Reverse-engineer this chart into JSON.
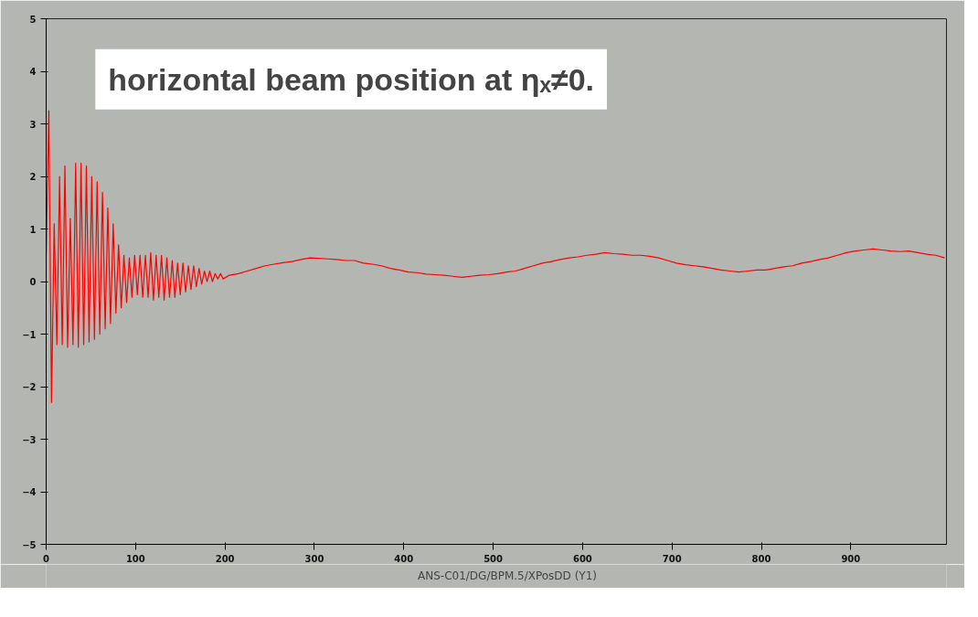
{
  "chart_data": {
    "type": "line",
    "title": "horizontal beam position at ηₓ≠0.",
    "xlim": [
      0,
      1007
    ],
    "ylim": [
      -5,
      5
    ],
    "xticks": [
      0,
      100,
      200,
      300,
      400,
      500,
      600,
      700,
      800,
      900
    ],
    "yticks": [
      -5,
      -4,
      -3,
      -2,
      -1,
      0,
      1,
      2,
      3,
      4,
      5
    ],
    "grid": false,
    "legend": "bottom",
    "marker": "none",
    "line_style": "solid",
    "series": [
      {
        "name": "ANS-C01/DG/BPM.5/XPosDD (Y1)",
        "color": "#ff0000",
        "x": [
          0,
          3,
          6,
          9,
          12,
          15,
          18,
          21,
          24,
          27,
          30,
          33,
          36,
          39,
          42,
          45,
          48,
          51,
          54,
          57,
          60,
          63,
          66,
          69,
          72,
          75,
          78,
          81,
          84,
          87,
          90,
          93,
          96,
          99,
          102,
          105,
          108,
          111,
          114,
          117,
          120,
          123,
          126,
          129,
          132,
          135,
          138,
          141,
          144,
          147,
          150,
          153,
          156,
          159,
          162,
          165,
          168,
          171,
          174,
          177,
          180,
          183,
          186,
          189,
          192,
          195,
          198,
          205,
          215,
          225,
          235,
          245,
          255,
          265,
          275,
          285,
          295,
          305,
          315,
          325,
          335,
          345,
          355,
          365,
          375,
          385,
          395,
          405,
          415,
          425,
          435,
          445,
          455,
          465,
          475,
          485,
          495,
          505,
          515,
          525,
          535,
          545,
          555,
          565,
          575,
          585,
          595,
          605,
          615,
          625,
          635,
          645,
          655,
          665,
          675,
          685,
          695,
          705,
          715,
          725,
          735,
          745,
          755,
          765,
          775,
          785,
          795,
          805,
          815,
          825,
          835,
          845,
          855,
          865,
          875,
          885,
          895,
          905,
          915,
          925,
          935,
          945,
          955,
          965,
          975,
          985,
          995,
          1005
        ],
        "values": [
          0.5,
          3.25,
          -2.3,
          1.1,
          -1.2,
          2.0,
          -1.2,
          2.2,
          -1.25,
          1.2,
          -1.2,
          2.25,
          -1.25,
          2.25,
          -1.2,
          2.2,
          -1.15,
          2.0,
          -1.1,
          1.9,
          -1.0,
          1.7,
          -0.9,
          1.4,
          -0.8,
          1.1,
          -0.6,
          0.7,
          -0.5,
          0.5,
          -0.4,
          0.45,
          -0.3,
          0.5,
          -0.25,
          0.5,
          -0.3,
          0.5,
          -0.3,
          0.55,
          -0.35,
          0.5,
          -0.3,
          0.5,
          -0.35,
          0.45,
          -0.3,
          0.4,
          -0.3,
          0.35,
          -0.25,
          0.35,
          -0.2,
          0.3,
          -0.15,
          0.3,
          -0.1,
          0.25,
          -0.05,
          0.2,
          0.0,
          0.2,
          0.0,
          0.15,
          0.05,
          0.15,
          0.05,
          0.12,
          0.15,
          0.2,
          0.25,
          0.3,
          0.33,
          0.36,
          0.38,
          0.42,
          0.45,
          0.44,
          0.43,
          0.42,
          0.4,
          0.4,
          0.35,
          0.33,
          0.3,
          0.25,
          0.22,
          0.18,
          0.17,
          0.14,
          0.13,
          0.12,
          0.1,
          0.08,
          0.1,
          0.12,
          0.13,
          0.15,
          0.18,
          0.2,
          0.25,
          0.3,
          0.35,
          0.38,
          0.42,
          0.45,
          0.47,
          0.5,
          0.52,
          0.55,
          0.53,
          0.52,
          0.5,
          0.5,
          0.48,
          0.45,
          0.4,
          0.35,
          0.32,
          0.3,
          0.28,
          0.25,
          0.22,
          0.2,
          0.18,
          0.2,
          0.22,
          0.22,
          0.25,
          0.28,
          0.3,
          0.35,
          0.38,
          0.42,
          0.45,
          0.5,
          0.55,
          0.58,
          0.6,
          0.62,
          0.6,
          0.58,
          0.57,
          0.58,
          0.55,
          0.52,
          0.5,
          0.45
        ]
      }
    ]
  }
}
